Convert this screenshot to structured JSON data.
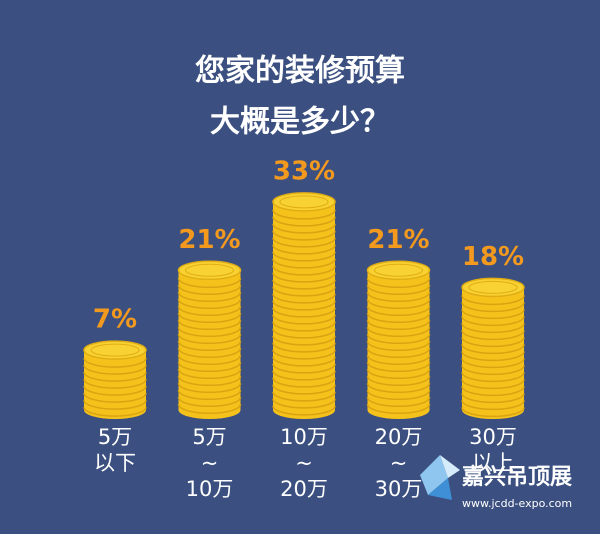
{
  "chart_data": {
    "type": "coin-stack",
    "title": [
      "您家的装修预算",
      "大概是多少？"
    ],
    "categories": [
      [
        "5万",
        "以下"
      ],
      [
        "5万",
        "~",
        "10万"
      ],
      [
        "10万",
        "~",
        "20万"
      ],
      [
        "20万",
        "~",
        "30万"
      ],
      [
        "30万",
        "以上"
      ]
    ],
    "values": [
      7,
      21,
      33,
      21,
      18
    ],
    "value_labels": [
      "7%",
      "21%",
      "33%",
      "21%",
      "18%"
    ],
    "color": "#f4c21b",
    "label_color": "#f39a1e"
  },
  "watermark": {
    "name": "嘉兴吊顶展",
    "url": "www.jcdd-expo.com"
  }
}
